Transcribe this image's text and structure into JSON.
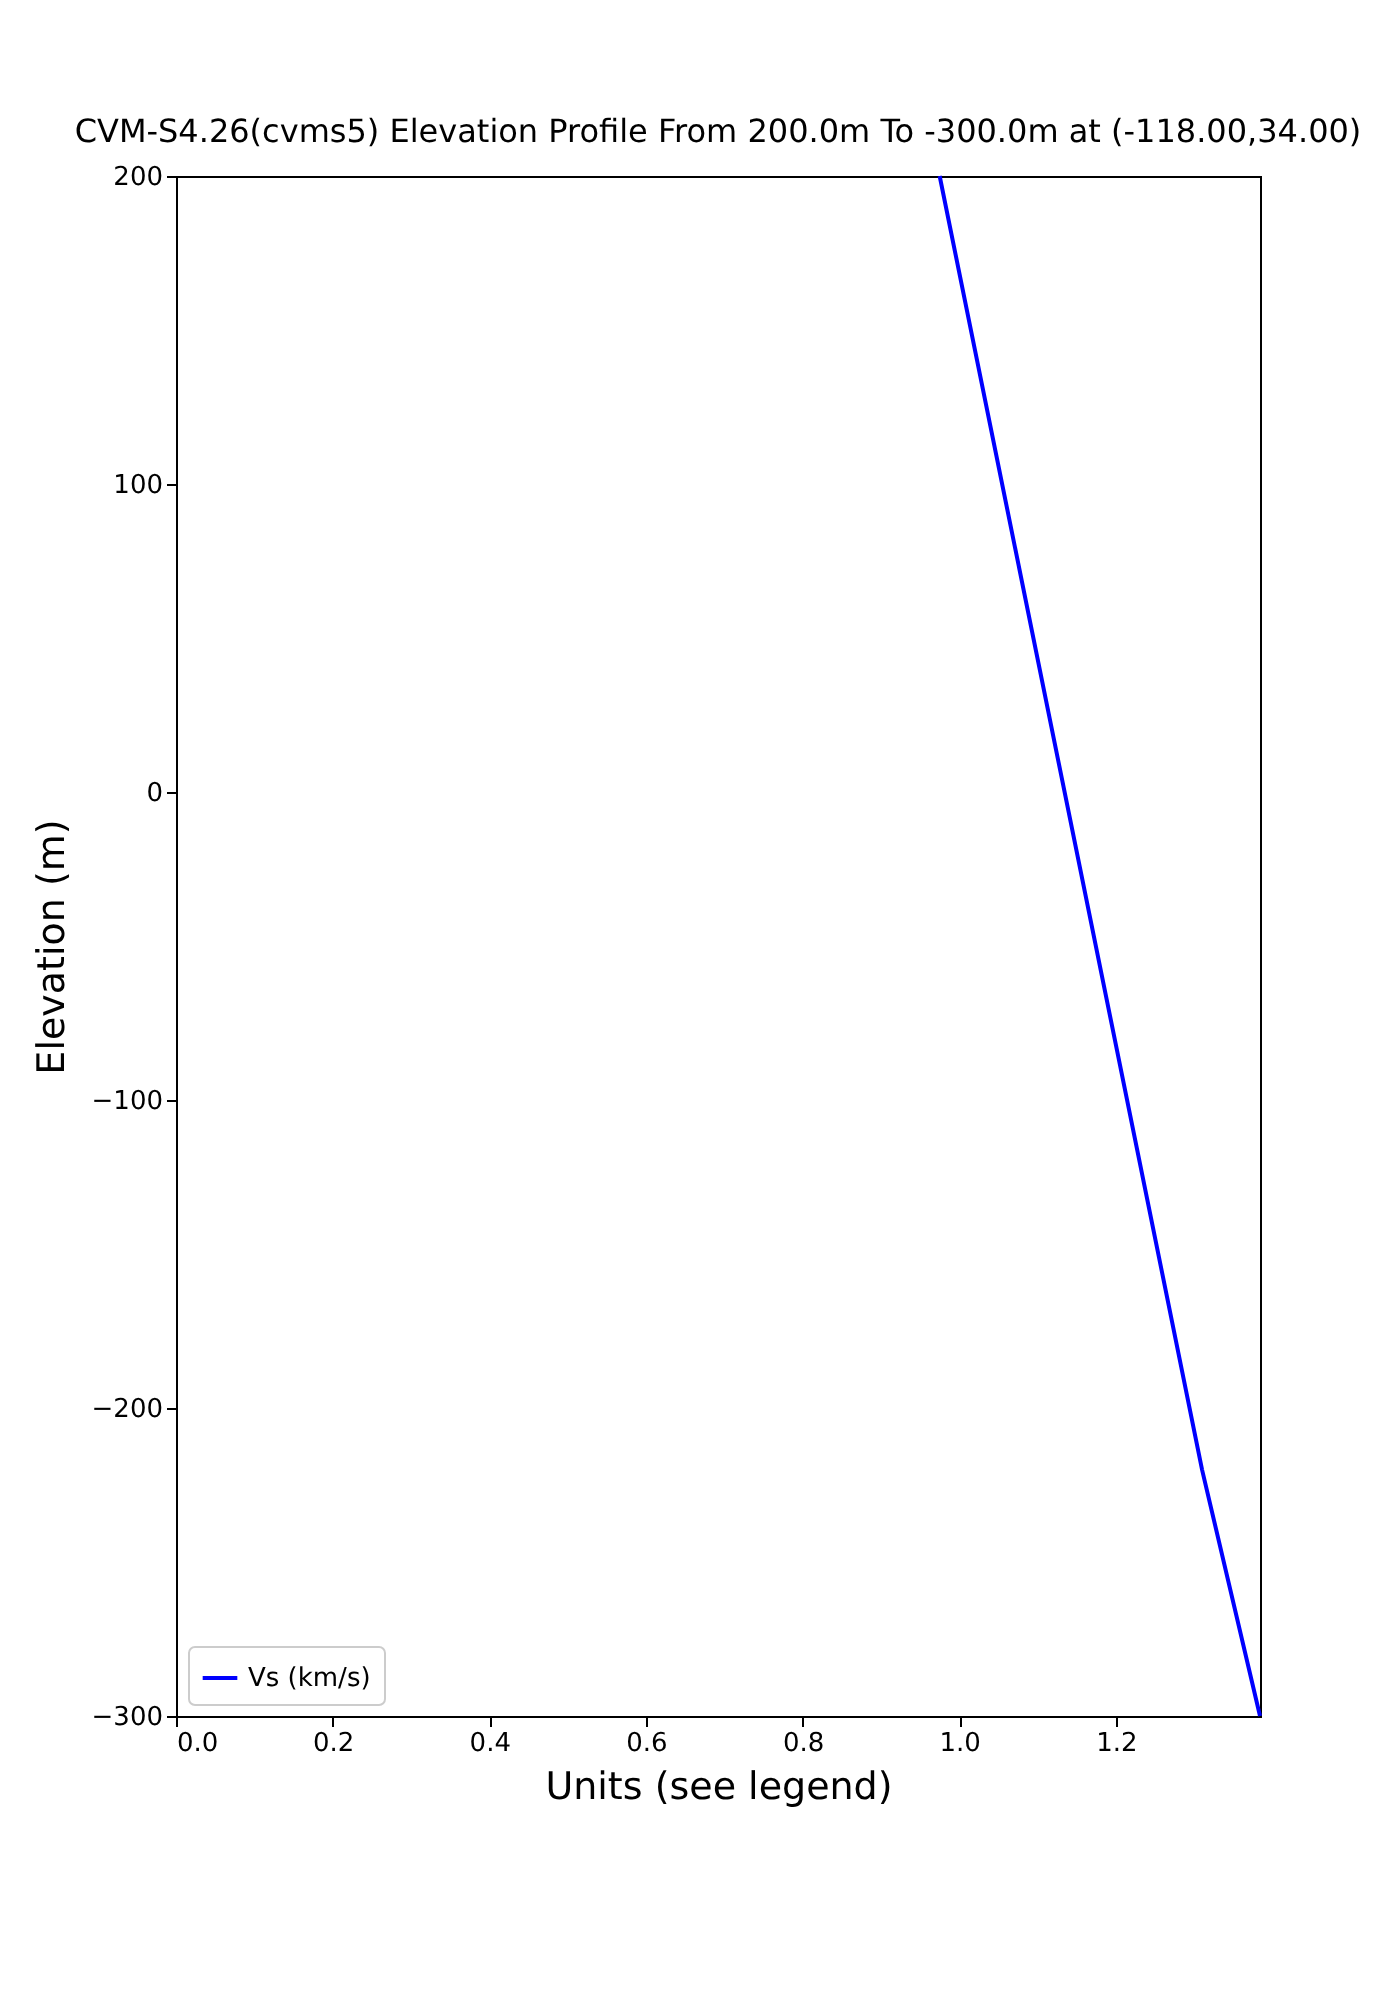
{
  "chart_data": {
    "type": "line",
    "title": "CVM-S4.26(cvms5) Elevation Profile From 200.0m To -300.0m at (-118.00,34.00)",
    "xlabel": "Units (see legend)",
    "ylabel": "Elevation (m)",
    "series": [
      {
        "name": "Vs (km/s)",
        "color": "#0000ff",
        "x": [
          0.975,
          1.31,
          1.384
        ],
        "values": [
          200,
          -220,
          -300
        ]
      }
    ],
    "xlim": [
      0,
      1.384
    ],
    "ylim": [
      -300,
      200
    ],
    "xticks": [
      {
        "value": 0,
        "label": "0.0"
      },
      {
        "value": 0.2,
        "label": "0.2"
      },
      {
        "value": 0.4,
        "label": "0.4"
      },
      {
        "value": 0.6,
        "label": "0.6"
      },
      {
        "value": 0.8,
        "label": "0.8"
      },
      {
        "value": 1,
        "label": "1.0"
      },
      {
        "value": 1.2,
        "label": "1.2"
      }
    ],
    "yticks": [
      {
        "value": -300,
        "label": "−300"
      },
      {
        "value": -200,
        "label": "−200"
      },
      {
        "value": -100,
        "label": "−100"
      },
      0,
      100,
      200
    ],
    "grid": false,
    "legend": "bottom left",
    "marker": "none",
    "line_style": "solid"
  }
}
